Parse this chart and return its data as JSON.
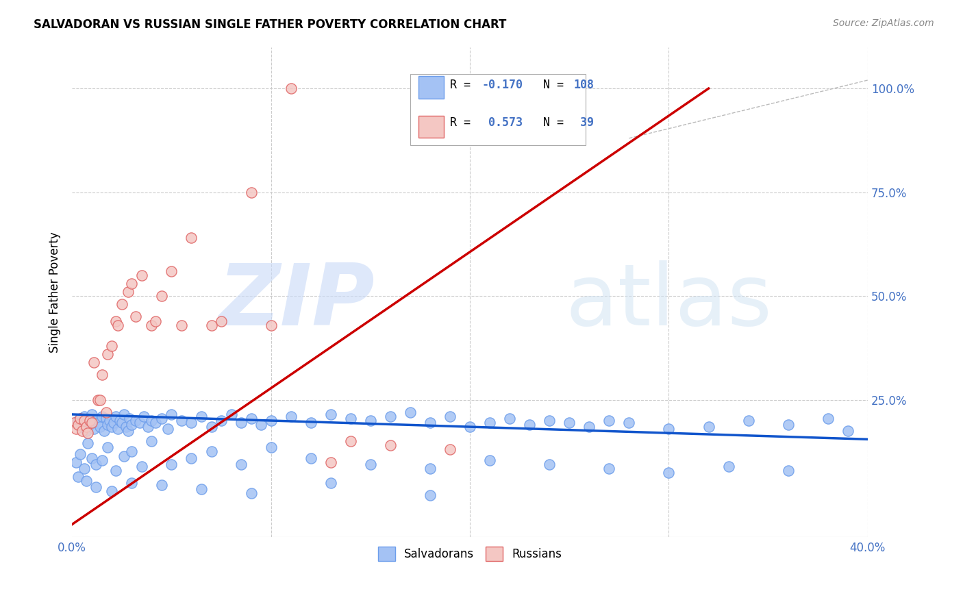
{
  "title": "SALVADORAN VS RUSSIAN SINGLE FATHER POVERTY CORRELATION CHART",
  "source": "Source: ZipAtlas.com",
  "ylabel": "Single Father Poverty",
  "xlim": [
    0.0,
    0.4
  ],
  "ylim": [
    -0.08,
    1.1
  ],
  "salvadoran_color": "#a4c2f4",
  "salvadoran_edge": "#6d9eeb",
  "russian_color": "#f4c7c3",
  "russian_edge": "#e06666",
  "sal_line_color": "#1155cc",
  "rus_line_color": "#cc0000",
  "grid_color": "#cccccc",
  "tick_color": "#4472c4",
  "salvadoran_R": -0.17,
  "salvadoran_N": 108,
  "russian_R": 0.573,
  "russian_N": 39,
  "watermark_zip_color": "#c9daf8",
  "watermark_atlas_color": "#cfe2f3",
  "sal_scatter_x": [
    0.003,
    0.004,
    0.005,
    0.006,
    0.007,
    0.008,
    0.009,
    0.01,
    0.011,
    0.012,
    0.013,
    0.014,
    0.015,
    0.016,
    0.017,
    0.018,
    0.019,
    0.02,
    0.021,
    0.022,
    0.023,
    0.024,
    0.025,
    0.026,
    0.027,
    0.028,
    0.029,
    0.03,
    0.032,
    0.034,
    0.036,
    0.038,
    0.04,
    0.042,
    0.045,
    0.048,
    0.05,
    0.055,
    0.06,
    0.065,
    0.07,
    0.075,
    0.08,
    0.085,
    0.09,
    0.095,
    0.1,
    0.11,
    0.12,
    0.13,
    0.14,
    0.15,
    0.16,
    0.17,
    0.18,
    0.19,
    0.2,
    0.21,
    0.22,
    0.23,
    0.24,
    0.25,
    0.26,
    0.27,
    0.28,
    0.3,
    0.32,
    0.34,
    0.36,
    0.38,
    0.002,
    0.004,
    0.006,
    0.008,
    0.01,
    0.012,
    0.015,
    0.018,
    0.022,
    0.026,
    0.03,
    0.035,
    0.04,
    0.05,
    0.06,
    0.07,
    0.085,
    0.1,
    0.12,
    0.15,
    0.18,
    0.21,
    0.24,
    0.27,
    0.3,
    0.33,
    0.36,
    0.39,
    0.003,
    0.007,
    0.012,
    0.02,
    0.03,
    0.045,
    0.065,
    0.09,
    0.13,
    0.18
  ],
  "sal_scatter_y": [
    0.2,
    0.185,
    0.195,
    0.21,
    0.175,
    0.205,
    0.19,
    0.215,
    0.18,
    0.2,
    0.195,
    0.185,
    0.21,
    0.175,
    0.205,
    0.19,
    0.2,
    0.185,
    0.195,
    0.21,
    0.18,
    0.2,
    0.195,
    0.215,
    0.185,
    0.175,
    0.205,
    0.19,
    0.2,
    0.195,
    0.21,
    0.185,
    0.2,
    0.195,
    0.205,
    0.18,
    0.215,
    0.2,
    0.195,
    0.21,
    0.185,
    0.2,
    0.215,
    0.195,
    0.205,
    0.19,
    0.2,
    0.21,
    0.195,
    0.215,
    0.205,
    0.2,
    0.21,
    0.22,
    0.195,
    0.21,
    0.185,
    0.195,
    0.205,
    0.19,
    0.2,
    0.195,
    0.185,
    0.2,
    0.195,
    0.18,
    0.185,
    0.2,
    0.19,
    0.205,
    0.1,
    0.12,
    0.085,
    0.145,
    0.11,
    0.095,
    0.105,
    0.135,
    0.08,
    0.115,
    0.125,
    0.09,
    0.15,
    0.095,
    0.11,
    0.125,
    0.095,
    0.135,
    0.11,
    0.095,
    0.085,
    0.105,
    0.095,
    0.085,
    0.075,
    0.09,
    0.08,
    0.175,
    0.065,
    0.055,
    0.04,
    0.03,
    0.05,
    0.045,
    0.035,
    0.025,
    0.05,
    0.02
  ],
  "rus_scatter_x": [
    0.001,
    0.002,
    0.003,
    0.004,
    0.005,
    0.006,
    0.007,
    0.008,
    0.009,
    0.01,
    0.011,
    0.013,
    0.015,
    0.018,
    0.02,
    0.022,
    0.025,
    0.028,
    0.03,
    0.035,
    0.04,
    0.045,
    0.05,
    0.06,
    0.07,
    0.09,
    0.11,
    0.13,
    0.16,
    0.19,
    0.014,
    0.017,
    0.023,
    0.032,
    0.042,
    0.055,
    0.075,
    0.1,
    0.14
  ],
  "rus_scatter_y": [
    0.195,
    0.18,
    0.19,
    0.205,
    0.175,
    0.2,
    0.185,
    0.17,
    0.2,
    0.195,
    0.34,
    0.25,
    0.31,
    0.36,
    0.38,
    0.44,
    0.48,
    0.51,
    0.53,
    0.55,
    0.43,
    0.5,
    0.56,
    0.64,
    0.43,
    0.75,
    1.0,
    0.1,
    0.14,
    0.13,
    0.25,
    0.22,
    0.43,
    0.45,
    0.44,
    0.43,
    0.44,
    0.43,
    0.15
  ],
  "rus_line_x0": 0.0,
  "rus_line_y0": -0.05,
  "rus_line_x1": 0.32,
  "rus_line_y1": 1.0,
  "sal_line_x0": 0.0,
  "sal_line_y0": 0.215,
  "sal_line_x1": 0.4,
  "sal_line_y1": 0.155
}
